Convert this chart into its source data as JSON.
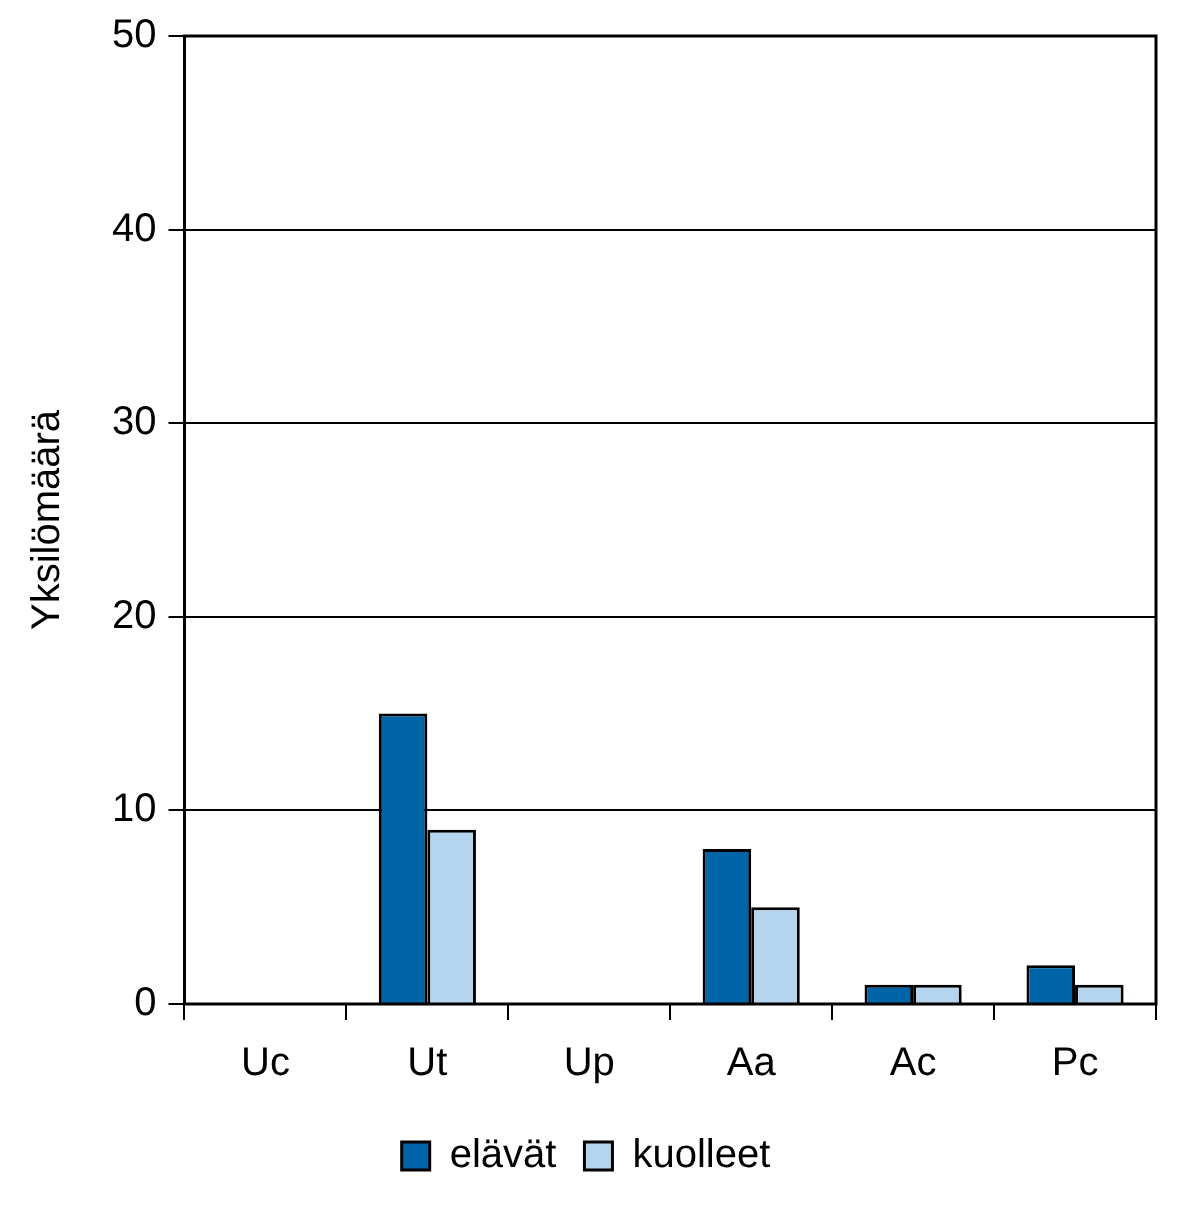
{
  "chart_data": {
    "type": "bar",
    "ylabel": "Yksilömäärä",
    "categories": [
      "Uc",
      "Ut",
      "Up",
      "Aa",
      "Ac",
      "Pc"
    ],
    "series": [
      {
        "name": "elävät",
        "color": "#0065a8",
        "values": [
          0,
          15,
          0,
          8,
          1,
          2
        ]
      },
      {
        "name": "kuolleet",
        "color": "#b5d5ee",
        "values": [
          0,
          9,
          0,
          5,
          1,
          1
        ]
      }
    ],
    "ylim": [
      0,
      50
    ],
    "yticks": [
      0,
      10,
      20,
      30,
      40,
      50
    ],
    "grid": "y",
    "legend": "bottom"
  }
}
